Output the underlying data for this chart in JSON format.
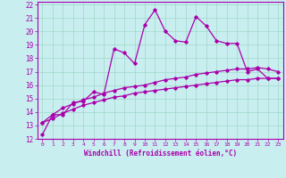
{
  "xlabel": "Windchill (Refroidissement éolien,°C)",
  "background_color": "#c8eef0",
  "grid_color": "#a0d8c8",
  "line_color": "#aa00aa",
  "xlim": [
    -0.5,
    23.5
  ],
  "ylim": [
    12,
    22.2
  ],
  "xticks": [
    0,
    1,
    2,
    3,
    4,
    5,
    6,
    7,
    8,
    9,
    10,
    11,
    12,
    13,
    14,
    15,
    16,
    17,
    18,
    19,
    20,
    21,
    22,
    23
  ],
  "yticks": [
    12,
    13,
    14,
    15,
    16,
    17,
    18,
    19,
    20,
    21,
    22
  ],
  "line1_x": [
    0,
    1,
    2,
    3,
    4,
    5,
    6,
    7,
    8,
    9,
    10,
    11,
    12,
    13,
    14,
    15,
    16,
    17,
    18,
    19,
    20,
    21,
    22,
    23
  ],
  "line1_y": [
    12.3,
    13.8,
    13.8,
    14.7,
    14.8,
    15.5,
    15.3,
    18.7,
    18.4,
    17.6,
    20.5,
    21.6,
    20.0,
    19.3,
    19.2,
    21.1,
    20.4,
    19.3,
    19.1,
    19.1,
    17.0,
    17.2,
    16.5,
    16.5
  ],
  "line2_x": [
    0,
    1,
    2,
    3,
    4,
    5,
    6,
    7,
    8,
    9,
    10,
    11,
    12,
    13,
    14,
    15,
    16,
    17,
    18,
    19,
    20,
    21,
    22,
    23
  ],
  "line2_y": [
    13.2,
    13.8,
    14.3,
    14.6,
    14.9,
    15.1,
    15.4,
    15.6,
    15.8,
    15.9,
    16.0,
    16.2,
    16.4,
    16.5,
    16.6,
    16.8,
    16.9,
    17.0,
    17.1,
    17.2,
    17.2,
    17.3,
    17.2,
    17.0
  ],
  "line3_x": [
    0,
    1,
    2,
    3,
    4,
    5,
    6,
    7,
    8,
    9,
    10,
    11,
    12,
    13,
    14,
    15,
    16,
    17,
    18,
    19,
    20,
    21,
    22,
    23
  ],
  "line3_y": [
    13.2,
    13.5,
    13.9,
    14.2,
    14.5,
    14.7,
    14.9,
    15.1,
    15.2,
    15.4,
    15.5,
    15.6,
    15.7,
    15.8,
    15.9,
    16.0,
    16.1,
    16.2,
    16.3,
    16.4,
    16.4,
    16.5,
    16.5,
    16.5
  ]
}
